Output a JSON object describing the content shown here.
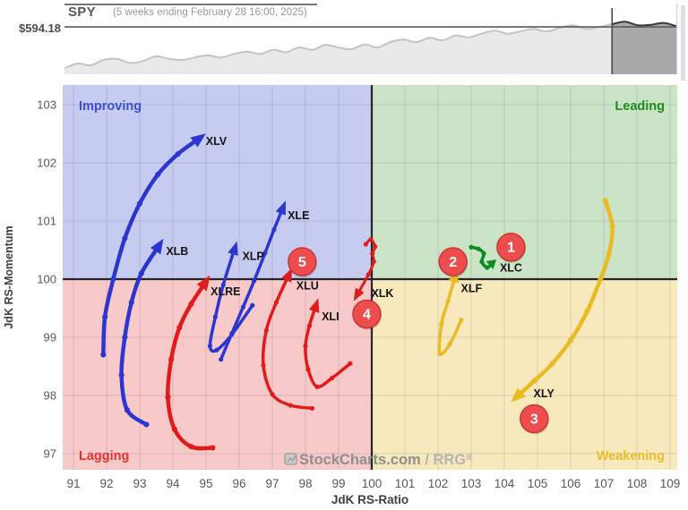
{
  "chart_data": [
    {
      "id": "spy-mini-chart",
      "type": "area",
      "title": "SPY",
      "subtitle": "(5 weeks ending February 28 16:00, 2025)",
      "price_line": 594.18,
      "price_line_label": "$594.18",
      "ylim": [
        556,
        601
      ],
      "highlight_start_index": 42,
      "values": [
        559.5,
        563.5,
        562,
        566.5,
        567.5,
        564,
        565.5,
        569.5,
        567.5,
        566.5,
        568.5,
        570.5,
        568.5,
        571.5,
        573.5,
        571.5,
        575,
        573,
        577,
        575,
        579,
        577,
        575.5,
        579.5,
        577,
        581.5,
        583.5,
        581.5,
        585,
        583,
        587,
        585.5,
        588.5,
        591,
        588.5,
        590.5,
        592.5,
        590.5,
        593.5,
        595.5,
        592.5,
        594,
        596.5,
        598.5,
        595.5,
        596,
        597.5,
        594.5
      ]
    },
    {
      "id": "rrg",
      "type": "scatter",
      "xlabel": "JdK RS-Ratio",
      "ylabel": "JdK RS-Momentum",
      "xlim": [
        90.676,
        109.216
      ],
      "ylim": [
        96.723,
        103.338
      ],
      "x_ticks": [
        91,
        92,
        93,
        94,
        95,
        96,
        97,
        98,
        99,
        100,
        101,
        102,
        103,
        104,
        105,
        106,
        107,
        108,
        109
      ],
      "y_ticks": [
        97,
        98,
        99,
        100,
        101,
        102,
        103
      ],
      "center": [
        100,
        100
      ],
      "quadrants": [
        {
          "name": "Improving",
          "corner": "top-left",
          "bg": "#c6cbf0",
          "text_color": "#3a4ed0"
        },
        {
          "name": "Leading",
          "corner": "top-right",
          "bg": "#cbe3c6",
          "text_color": "#1e8c1e"
        },
        {
          "name": "Lagging",
          "corner": "bottom-left",
          "bg": "#f8c9c9",
          "text_color": "#e03232"
        },
        {
          "name": "Weakening",
          "corner": "bottom-right",
          "bg": "#f7e9bb",
          "text_color": "#e7bc2a"
        }
      ],
      "series": [
        {
          "name": "XLV",
          "color": "#2a36cf",
          "width": 4.5,
          "alen": 15,
          "label_offset": [
            9,
            6
          ],
          "points": [
            [
              91.9,
              98.7
            ],
            [
              91.95,
              99.35
            ],
            [
              92.2,
              100.0
            ],
            [
              92.55,
              100.7
            ],
            [
              93.0,
              101.3
            ],
            [
              93.55,
              101.8
            ],
            [
              94.15,
              102.15
            ],
            [
              94.75,
              102.4
            ]
          ]
        },
        {
          "name": "XLB",
          "color": "#2a36cf",
          "width": 4.5,
          "alen": 15,
          "label_offset": [
            9,
            9
          ],
          "points": [
            [
              93.2,
              97.5
            ],
            [
              92.62,
              97.75
            ],
            [
              92.45,
              98.35
            ],
            [
              92.55,
              99.0
            ],
            [
              92.75,
              99.6
            ],
            [
              93.05,
              100.1
            ],
            [
              93.55,
              100.55
            ]
          ]
        },
        {
          "name": "XLE",
          "color": "#2a36cf",
          "width": 3.5,
          "alen": 14,
          "label_offset": [
            6,
            11
          ],
          "points": [
            [
              95.45,
              98.62
            ],
            [
              95.78,
              99.07
            ],
            [
              96.12,
              99.52
            ],
            [
              96.45,
              99.97
            ],
            [
              96.78,
              100.45
            ],
            [
              97.05,
              100.85
            ],
            [
              97.3,
              101.2
            ]
          ]
        },
        {
          "name": "XLP",
          "color": "#2a36cf",
          "width": 3.5,
          "alen": 14,
          "label_offset": [
            9,
            11
          ],
          "points": [
            [
              96.4,
              99.55
            ],
            [
              95.78,
              99.05
            ],
            [
              95.32,
              98.78
            ],
            [
              95.12,
              98.85
            ],
            [
              95.28,
              99.35
            ],
            [
              95.52,
              99.9
            ],
            [
              95.85,
              100.5
            ]
          ]
        },
        {
          "name": "XLRE",
          "color": "#e11b1b",
          "width": 4.5,
          "alen": 15,
          "label_offset": [
            7,
            13
          ],
          "points": [
            [
              95.2,
              97.1
            ],
            [
              94.55,
              97.12
            ],
            [
              94.05,
              97.42
            ],
            [
              93.85,
              97.97
            ],
            [
              93.95,
              98.62
            ],
            [
              94.2,
              99.17
            ],
            [
              94.55,
              99.57
            ],
            [
              94.95,
              99.92
            ]
          ]
        },
        {
          "name": "XLU",
          "color": "#e11b1b",
          "width": 3.5,
          "alen": 14,
          "label_offset": [
            9,
            15
          ],
          "points": [
            [
              98.2,
              97.78
            ],
            [
              97.55,
              97.83
            ],
            [
              97.0,
              98.02
            ],
            [
              96.73,
              98.52
            ],
            [
              96.82,
              99.12
            ],
            [
              97.12,
              99.6
            ],
            [
              97.48,
              100.05
            ]
          ]
        },
        {
          "name": "XLI",
          "color": "#e11b1b",
          "width": 3.5,
          "alen": 14,
          "label_offset": [
            7,
            15
          ],
          "points": [
            [
              99.35,
              98.55
            ],
            [
              98.8,
              98.3
            ],
            [
              98.35,
              98.15
            ],
            [
              98.08,
              98.45
            ],
            [
              98.0,
              98.85
            ],
            [
              98.12,
              99.2
            ],
            [
              98.3,
              99.52
            ]
          ]
        },
        {
          "name": "XLK",
          "color": "#e11b1b",
          "width": 3,
          "alen": 13,
          "label_offset": [
            15,
            4
          ],
          "points": [
            [
              99.82,
              100.6
            ],
            [
              99.97,
              100.68
            ],
            [
              100.1,
              100.56
            ],
            [
              100.02,
              100.44
            ],
            [
              100.06,
              100.3
            ],
            [
              99.9,
              100.08
            ],
            [
              99.58,
              99.75
            ]
          ]
        },
        {
          "name": "XLF",
          "color": "#eaba24",
          "width": 3.5,
          "alen": 13,
          "label_offset": [
            7,
            16
          ],
          "points": [
            [
              102.7,
              99.3
            ],
            [
              102.35,
              98.88
            ],
            [
              102.05,
              98.72
            ],
            [
              102.1,
              99.22
            ],
            [
              102.3,
              99.62
            ],
            [
              102.5,
              100.02
            ]
          ]
        },
        {
          "name": "XLY",
          "color": "#eaba24",
          "width": 4.5,
          "alen": 15,
          "label_offset": [
            17,
            2
          ],
          "points": [
            [
              107.05,
              101.35
            ],
            [
              107.26,
              100.9
            ],
            [
              107.16,
              100.45
            ],
            [
              106.9,
              100.0
            ],
            [
              106.5,
              99.45
            ],
            [
              106.0,
              98.95
            ],
            [
              105.45,
              98.55
            ],
            [
              104.9,
              98.25
            ],
            [
              104.42,
              98.0
            ]
          ]
        },
        {
          "name": "XLC",
          "color": "#0e8a22",
          "width": 3.5,
          "alen": 9,
          "label_offset": [
            9,
            9
          ],
          "points": [
            [
              103.0,
              100.55
            ],
            [
              103.22,
              100.52
            ],
            [
              103.38,
              100.44
            ],
            [
              103.32,
              100.3
            ],
            [
              103.48,
              100.2
            ],
            [
              103.62,
              100.27
            ]
          ]
        }
      ],
      "badges": [
        {
          "label": "1",
          "x": 104.2,
          "y": 100.55
        },
        {
          "label": "2",
          "x": 102.45,
          "y": 100.3
        },
        {
          "label": "3",
          "x": 104.9,
          "y": 97.6
        },
        {
          "label": "4",
          "x": 99.85,
          "y": 99.4
        },
        {
          "label": "5",
          "x": 97.9,
          "y": 100.3
        }
      ],
      "badge_colors": {
        "fill": "#ee4d4d",
        "stroke": "#c93438",
        "text": "#ffffff"
      },
      "watermark": {
        "main": "StockCharts.com",
        "rrg": " / RRG",
        "reg": "®"
      }
    }
  ]
}
